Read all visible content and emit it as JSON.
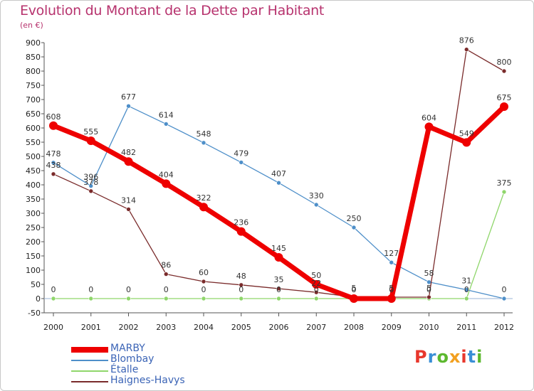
{
  "header": {
    "title": "Evolution du Montant de la Dette par Habitant",
    "subtitle": "(en €)"
  },
  "logo": {
    "text": "Proxiti",
    "letter_colors": [
      "#e8372c",
      "#3a8fd6",
      "#5cb82e",
      "#f2a020",
      "#e8372c",
      "#3a8fd6",
      "#5cb82e"
    ]
  },
  "chart_data": {
    "type": "line",
    "title": "Evolution du Montant de la Dette par Habitant",
    "subtitle": "(en €)",
    "xlabel": "",
    "ylabel": "",
    "categories": [
      "2000",
      "2001",
      "2002",
      "2003",
      "2004",
      "2005",
      "2006",
      "2007",
      "2008",
      "2009",
      "2010",
      "2011",
      "2012"
    ],
    "ylim": [
      -50,
      900
    ],
    "yticks": [
      -50,
      0,
      50,
      100,
      150,
      200,
      250,
      300,
      350,
      400,
      450,
      500,
      550,
      600,
      650,
      700,
      750,
      800,
      850,
      900
    ],
    "grid": false,
    "legend_position": "bottom-left",
    "series": [
      {
        "name": "Étalle",
        "color": "#8fd66b",
        "values": [
          0,
          0,
          0,
          0,
          0,
          0,
          0,
          0,
          0,
          0,
          0,
          0,
          375
        ],
        "labels": [
          "0",
          "0",
          "0",
          "0",
          "0",
          "0",
          "0",
          "0",
          "0",
          "0",
          "0",
          "0",
          "375"
        ]
      },
      {
        "name": "Blombay",
        "color": "#4e8fc9",
        "values": [
          478,
          396,
          677,
          614,
          548,
          479,
          407,
          330,
          250,
          127,
          58,
          31,
          0
        ],
        "labels": [
          "478",
          "396",
          "677",
          "614",
          "548",
          "479",
          "407",
          "330",
          "250",
          "127",
          "58",
          "31",
          "0"
        ]
      },
      {
        "name": "Haignes-Havys",
        "color": "#7a2b2b",
        "values": [
          438,
          378,
          314,
          86,
          60,
          48,
          35,
          22,
          5,
          5,
          5,
          876,
          800
        ],
        "labels": [
          "438",
          "378",
          "314",
          "86",
          "60",
          "48",
          "35",
          "22",
          "5",
          "5",
          "5",
          "876",
          "800"
        ]
      },
      {
        "name": "MARBY",
        "color": "#ee0000",
        "values": [
          608,
          555,
          482,
          404,
          322,
          236,
          145,
          50,
          0,
          0,
          604,
          549,
          675
        ],
        "labels": [
          "608",
          "555",
          "482",
          "404",
          "322",
          "236",
          "145",
          "50",
          "0",
          "0",
          "604",
          "549",
          "675"
        ]
      }
    ],
    "legend_order": [
      "MARBY",
      "Blombay",
      "Étalle",
      "Haignes-Havys"
    ]
  }
}
